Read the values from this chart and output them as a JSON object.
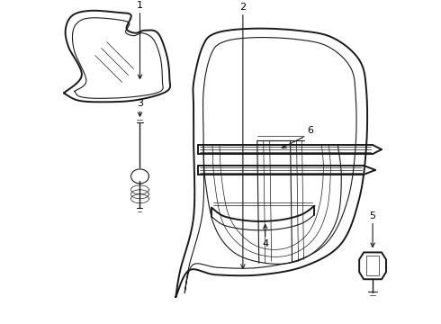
{
  "background_color": "#ffffff",
  "line_color": "#1a1a1a",
  "lw_outer": 1.4,
  "lw_inner": 0.8,
  "lw_thin": 0.5,
  "label_fontsize": 8,
  "label_color": "#000000"
}
